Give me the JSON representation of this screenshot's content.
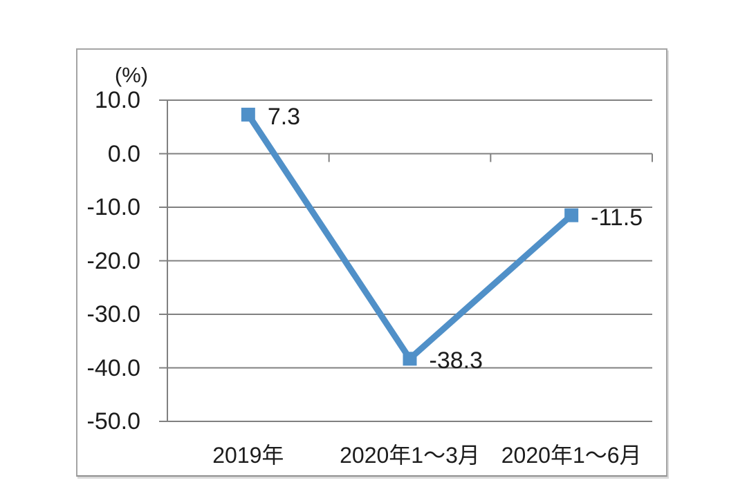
{
  "chart_data": {
    "type": "line",
    "title": "",
    "xlabel": "",
    "ylabel": "(%)",
    "unit_label": "(%)",
    "categories": [
      "2019年",
      "2020年1～3月",
      "2020年1～6月"
    ],
    "values": [
      7.3,
      -38.3,
      -11.5
    ],
    "data_labels": [
      "7.3",
      "-38.3",
      "-11.5"
    ],
    "y_ticks": [
      10.0,
      0.0,
      -10.0,
      -20.0,
      -30.0,
      -40.0,
      -50.0
    ],
    "y_tick_labels": [
      "10.0",
      "0.0",
      "-10.0",
      "-20.0",
      "-30.0",
      "-40.0",
      "-50.0"
    ],
    "ylim": [
      -50,
      10
    ],
    "grid": true,
    "legend": "none",
    "marker": "square",
    "colors": {
      "line": "#5090c8",
      "marker": "#5090c8",
      "gridline": "#808080",
      "axis": "#808080",
      "frame_border": "#a4a4a4",
      "text": "#1c1c1c",
      "background": "#ffffff"
    }
  }
}
